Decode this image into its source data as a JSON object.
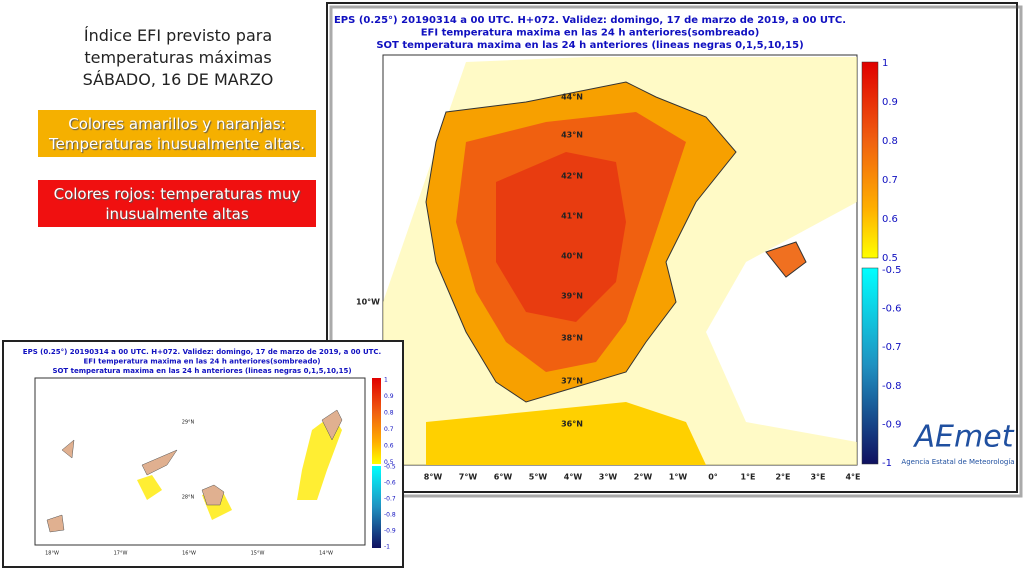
{
  "slide": {
    "title_lines": [
      "Índice EFI previsto para",
      "temperaturas máximas",
      "SÁBADO, 16 DE MARZO"
    ],
    "notes": [
      {
        "lines": [
          "Colores amarillos y naranjas:",
          "Temperaturas inusualmente altas."
        ]
      },
      {
        "lines": [
          "Colores rojos: temperaturas muy",
          "inusualmente altas"
        ]
      }
    ]
  },
  "main_map": {
    "title_lines": [
      "EPS (0.25°) 20190314 a 00 UTC.  H+072. Validez: domingo, 17 de marzo de 2019,  a  00 UTC.",
      "EFI temperatura maxima en las 24 h anteriores(sombreado)",
      "SOT temperatura maxima en las 24 h anteriores (lineas negras 0,1,5,10,15)"
    ],
    "colorbar_labels": [
      "1",
      "0.9",
      "0.8",
      "0.7",
      "0.6",
      "0.5",
      "-0.5",
      "-0.6",
      "-0.7",
      "-0.8",
      "-0.9",
      "-1"
    ],
    "longitude_labels": [
      "8°W",
      "7°W",
      "6°W",
      "5°W",
      "4°W",
      "3°W",
      "2°W",
      "1°W",
      "0°",
      "1°E",
      "2°E",
      "3°E",
      "4°E"
    ],
    "latitude_labels": [
      "44°N",
      "43°N",
      "42°N",
      "41°N",
      "40°N",
      "39°N",
      "38°N",
      "37°N",
      "36°N"
    ],
    "west_label": "10°W",
    "logo": {
      "name": "AEmet",
      "subtitle": "Agencia Estatal de Meteorología"
    }
  },
  "inset_map": {
    "title_lines": [
      "EPS (0.25°) 20190314 a 00 UTC.  H+072. Validez: domingo, 17 de marzo de 2019,  a  00 UTC.",
      "EFI temperatura maxima en las 24 h anteriores(sombreado)",
      "SOT temperatura maxima en las 24 h anteriores (lineas negras 0,1,5,10,15)"
    ],
    "colorbar_labels": [
      "1",
      "0.9",
      "0.8",
      "0.7",
      "0.6",
      "0.5",
      "-0.5",
      "-0.6",
      "-0.7",
      "-0.8",
      "-0.9",
      "-1"
    ],
    "longitude_labels": [
      "18°W",
      "17°W",
      "16°W",
      "15°W",
      "14°W"
    ],
    "latitude_labels": [
      "29°N",
      "28°N"
    ]
  }
}
